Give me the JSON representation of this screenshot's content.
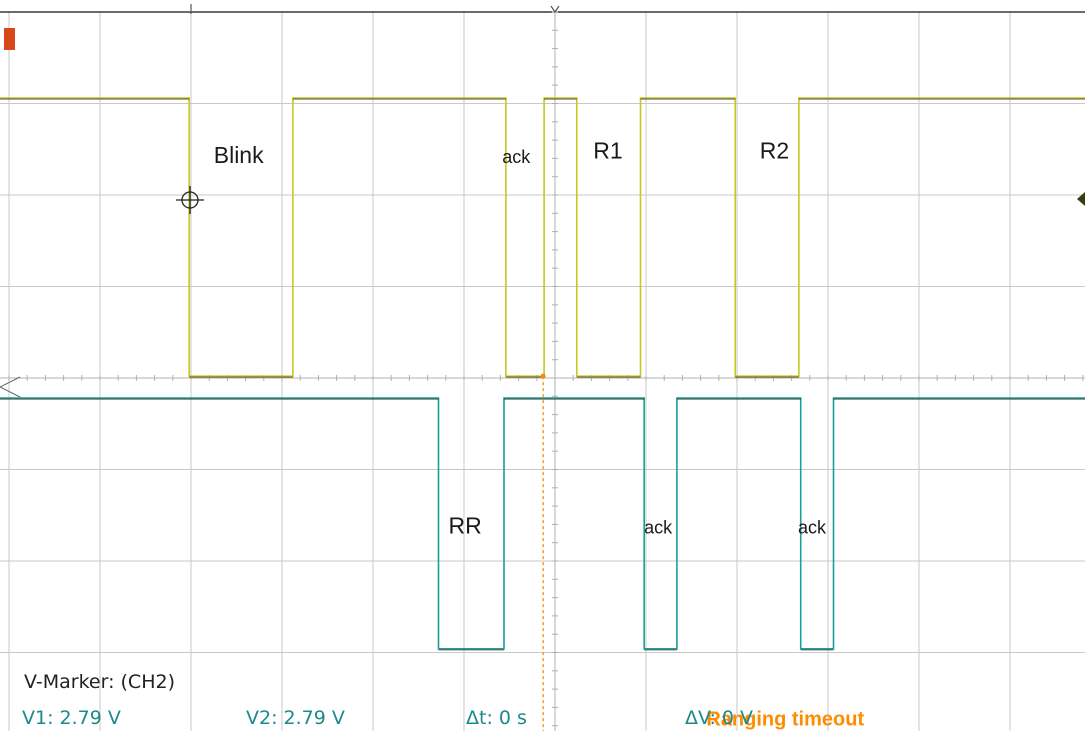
{
  "chart_data": {
    "type": "line",
    "x_unit": "div",
    "y_unit": "div",
    "grid": true,
    "grid_divisions": {
      "x": 12,
      "y": 8
    },
    "series": [
      {
        "color": "#c8c81e",
        "points": [
          [
            -0.1,
            7.06
          ],
          [
            1.98,
            7.06
          ],
          [
            1.98,
            4.02
          ],
          [
            3.12,
            4.02
          ],
          [
            3.12,
            7.06
          ],
          [
            5.46,
            7.06
          ],
          [
            5.46,
            4.02
          ],
          [
            5.88,
            4.02
          ],
          [
            5.88,
            7.06
          ],
          [
            6.24,
            7.06
          ],
          [
            6.24,
            4.02
          ],
          [
            6.94,
            4.02
          ],
          [
            6.94,
            7.06
          ],
          [
            7.98,
            7.06
          ],
          [
            7.98,
            4.02
          ],
          [
            8.68,
            4.02
          ],
          [
            8.68,
            7.06
          ],
          [
            12.0,
            7.06
          ]
        ]
      },
      {
        "color": "#16a0a0",
        "points": [
          [
            -0.1,
            3.78
          ],
          [
            4.72,
            3.78
          ],
          [
            4.72,
            1.04
          ],
          [
            5.44,
            1.04
          ],
          [
            5.44,
            3.78
          ],
          [
            6.98,
            3.78
          ],
          [
            6.98,
            1.04
          ],
          [
            7.34,
            1.04
          ],
          [
            7.34,
            3.78
          ],
          [
            8.7,
            3.78
          ],
          [
            8.7,
            1.04
          ],
          [
            9.06,
            1.04
          ],
          [
            9.06,
            3.78
          ],
          [
            12.0,
            3.78
          ]
        ]
      }
    ],
    "annotations": [
      {
        "text": "Blink",
        "x": 2.25,
        "y": 6.35
      },
      {
        "text": "ack",
        "x": 5.42,
        "y": 6.35
      },
      {
        "text": "R1",
        "x": 6.42,
        "y": 6.4
      },
      {
        "text": "R2",
        "x": 8.25,
        "y": 6.4
      },
      {
        "text": "RR",
        "x": 4.83,
        "y": 2.3
      },
      {
        "text": "ack",
        "x": 6.98,
        "y": 2.3
      },
      {
        "text": "ack",
        "x": 8.67,
        "y": 2.3
      }
    ],
    "cursor_line": {
      "x": 5.87,
      "color": "#ff8c00"
    },
    "range_arrow": {
      "label": "Ranging timeout",
      "x_start": 5.87,
      "x_end": 11.3,
      "y": 0.05,
      "color": "#ff8c00"
    }
  },
  "readout": {
    "marker_label": "V-Marker: (CH2)",
    "v1": "V1: 2.79 V",
    "v2": "V2: 2.79 V",
    "dt": "Δt: 0 s",
    "dv": "ΔV: 0 V",
    "text_color": "#1b8a8a"
  }
}
